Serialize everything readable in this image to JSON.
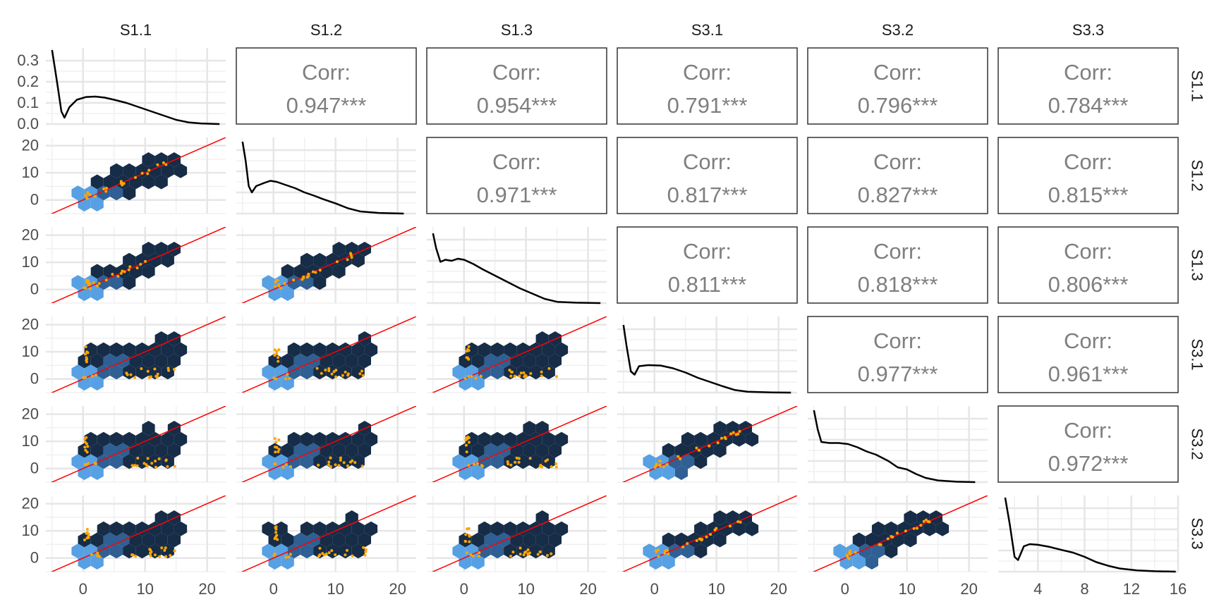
{
  "chart_data": {
    "type": "scatter",
    "variables": [
      "S1.1",
      "S1.2",
      "S1.3",
      "S3.1",
      "S3.2",
      "S3.3"
    ],
    "correlations": [
      {
        "row": "S1.1",
        "col": "S1.2",
        "label": "Corr:",
        "value": "0.947***"
      },
      {
        "row": "S1.1",
        "col": "S1.3",
        "label": "Corr:",
        "value": "0.954***"
      },
      {
        "row": "S1.1",
        "col": "S3.1",
        "label": "Corr:",
        "value": "0.791***"
      },
      {
        "row": "S1.1",
        "col": "S3.2",
        "label": "Corr:",
        "value": "0.796***"
      },
      {
        "row": "S1.1",
        "col": "S3.3",
        "label": "Corr:",
        "value": "0.784***"
      },
      {
        "row": "S1.2",
        "col": "S1.3",
        "label": "Corr:",
        "value": "0.971***"
      },
      {
        "row": "S1.2",
        "col": "S3.1",
        "label": "Corr:",
        "value": "0.817***"
      },
      {
        "row": "S1.2",
        "col": "S3.2",
        "label": "Corr:",
        "value": "0.827***"
      },
      {
        "row": "S1.2",
        "col": "S3.3",
        "label": "Corr:",
        "value": "0.815***"
      },
      {
        "row": "S1.3",
        "col": "S3.1",
        "label": "Corr:",
        "value": "0.811***"
      },
      {
        "row": "S1.3",
        "col": "S3.2",
        "label": "Corr:",
        "value": "0.818***"
      },
      {
        "row": "S1.3",
        "col": "S3.3",
        "label": "Corr:",
        "value": "0.806***"
      },
      {
        "row": "S3.1",
        "col": "S3.2",
        "label": "Corr:",
        "value": "0.977***"
      },
      {
        "row": "S3.1",
        "col": "S3.3",
        "label": "Corr:",
        "value": "0.961***"
      },
      {
        "row": "S3.2",
        "col": "S3.3",
        "label": "Corr:",
        "value": "0.972***"
      }
    ],
    "y_axis": {
      "ticks": [
        0,
        10,
        20
      ],
      "range": [
        -5,
        23
      ]
    },
    "x_axis": {
      "ticks": [
        0,
        10,
        20
      ],
      "range": [
        -6,
        23
      ]
    },
    "density_y_axis": {
      "ticks": [
        "0.0",
        "0.1",
        "0.2",
        "0.3"
      ],
      "range": [
        0,
        0.36
      ]
    },
    "last_density_x_axis": {
      "ticks": [
        4,
        8,
        12,
        16
      ],
      "range": [
        0.6,
        16
      ]
    },
    "reference_line": {
      "slope": 1,
      "intercept": 0,
      "color": "#ff0000"
    },
    "point_color": "#ffa500",
    "hex_colors": {
      "dense": "#56a0e3",
      "mid": "#2f5f93",
      "sparse": "#162c47"
    },
    "density_curves": {
      "S1.1": [
        [
          -5,
          0.35
        ],
        [
          -4.2,
          0.2
        ],
        [
          -3.5,
          0.06
        ],
        [
          -3,
          0.03
        ],
        [
          -2.2,
          0.08
        ],
        [
          -1,
          0.115
        ],
        [
          0.5,
          0.128
        ],
        [
          2,
          0.13
        ],
        [
          3.5,
          0.125
        ],
        [
          5,
          0.115
        ],
        [
          7,
          0.1
        ],
        [
          9,
          0.08
        ],
        [
          11,
          0.06
        ],
        [
          13,
          0.04
        ],
        [
          15,
          0.02
        ],
        [
          17,
          0.008
        ],
        [
          19,
          0.003
        ],
        [
          22,
          0.0
        ]
      ],
      "S1.2": [
        [
          -5,
          0.34
        ],
        [
          -4.5,
          0.25
        ],
        [
          -4,
          0.13
        ],
        [
          -3.5,
          0.1
        ],
        [
          -2.8,
          0.13
        ],
        [
          -1.5,
          0.145
        ],
        [
          -0.5,
          0.155
        ],
        [
          0.5,
          0.15
        ],
        [
          2,
          0.135
        ],
        [
          3.5,
          0.12
        ],
        [
          5,
          0.1
        ],
        [
          6.5,
          0.085
        ],
        [
          8,
          0.068
        ],
        [
          10,
          0.048
        ],
        [
          12,
          0.025
        ],
        [
          14,
          0.01
        ],
        [
          17,
          0.003
        ],
        [
          21,
          0.0
        ]
      ],
      "S1.3": [
        [
          -5,
          0.33
        ],
        [
          -4.5,
          0.26
        ],
        [
          -3.8,
          0.195
        ],
        [
          -3,
          0.205
        ],
        [
          -2,
          0.2
        ],
        [
          -1,
          0.21
        ],
        [
          0,
          0.205
        ],
        [
          1.5,
          0.185
        ],
        [
          3,
          0.16
        ],
        [
          5,
          0.13
        ],
        [
          7,
          0.1
        ],
        [
          9,
          0.07
        ],
        [
          11,
          0.045
        ],
        [
          13,
          0.02
        ],
        [
          15,
          0.006
        ],
        [
          18,
          0.002
        ],
        [
          22,
          0.0
        ]
      ],
      "S3.1": [
        [
          -5,
          0.32
        ],
        [
          -4.5,
          0.22
        ],
        [
          -3.8,
          0.1
        ],
        [
          -3.2,
          0.085
        ],
        [
          -2.5,
          0.125
        ],
        [
          -1,
          0.13
        ],
        [
          1,
          0.128
        ],
        [
          3,
          0.115
        ],
        [
          5,
          0.095
        ],
        [
          7,
          0.07
        ],
        [
          9,
          0.05
        ],
        [
          11,
          0.03
        ],
        [
          13,
          0.012
        ],
        [
          15,
          0.004
        ],
        [
          19,
          0.001
        ],
        [
          22,
          0.0
        ]
      ],
      "S3.2": [
        [
          -5,
          0.34
        ],
        [
          -4.4,
          0.25
        ],
        [
          -3.8,
          0.19
        ],
        [
          -2.5,
          0.185
        ],
        [
          -1,
          0.185
        ],
        [
          0.5,
          0.18
        ],
        [
          2,
          0.165
        ],
        [
          3.5,
          0.145
        ],
        [
          5,
          0.13
        ],
        [
          7,
          0.1
        ],
        [
          8.5,
          0.07
        ],
        [
          10,
          0.06
        ],
        [
          11.5,
          0.038
        ],
        [
          13,
          0.02
        ],
        [
          15,
          0.008
        ],
        [
          18,
          0.002
        ],
        [
          21,
          0.0
        ]
      ],
      "S3.3": [
        [
          1.2,
          0.35
        ],
        [
          1.6,
          0.22
        ],
        [
          2.0,
          0.07
        ],
        [
          2.3,
          0.055
        ],
        [
          2.8,
          0.12
        ],
        [
          3.3,
          0.13
        ],
        [
          4,
          0.127
        ],
        [
          5,
          0.117
        ],
        [
          6,
          0.103
        ],
        [
          7,
          0.09
        ],
        [
          8,
          0.07
        ],
        [
          9,
          0.045
        ],
        [
          10,
          0.028
        ],
        [
          11,
          0.015
        ],
        [
          12.5,
          0.006
        ],
        [
          14,
          0.002
        ],
        [
          15.8,
          0.0
        ]
      ]
    }
  }
}
